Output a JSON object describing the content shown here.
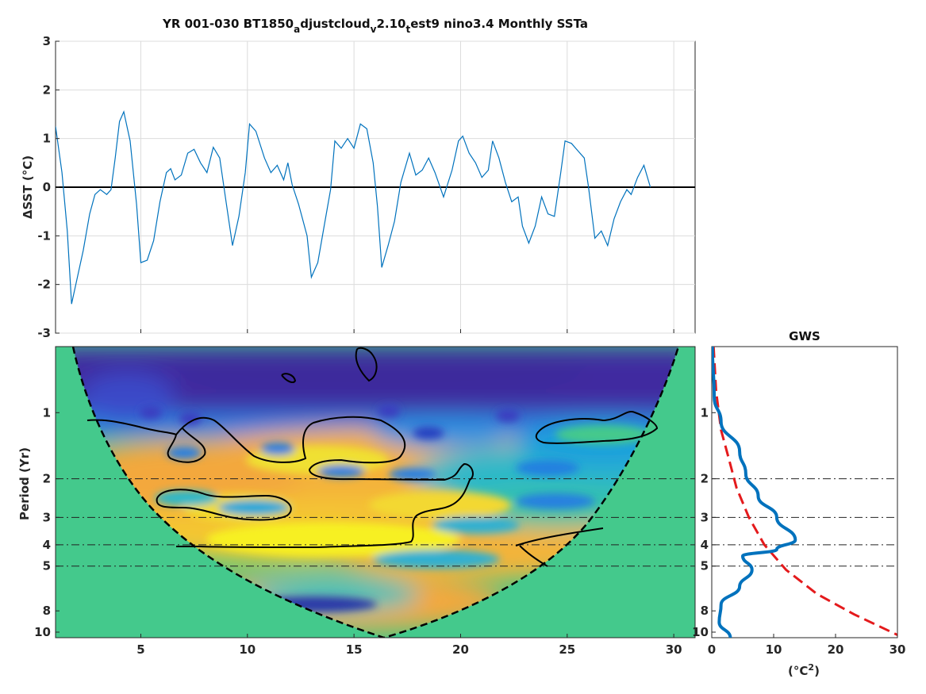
{
  "title_parts": [
    "YR 001-030 BT1850",
    "a",
    "djustcloud",
    "v",
    "2.10",
    "t",
    "est9 nino3.4 Monthly SSTa"
  ],
  "colors": {
    "series": "#0072bd",
    "zero_line": "#000000",
    "coi_fill": "#44c98c",
    "gws_line": "#0072bd",
    "significance": "#e41a1c",
    "grid": "#dcdcdc"
  },
  "chart_data": [
    {
      "type": "line",
      "panel": "time series",
      "ylabel": "ΔSST (°C)",
      "ylim": [
        -3,
        3
      ],
      "xlim": [
        1,
        31
      ],
      "yticks": [
        "3",
        "2",
        "1",
        "0",
        "-1",
        "-2",
        "-3"
      ],
      "xticks": [
        "5",
        "10",
        "15",
        "20",
        "25",
        "30"
      ],
      "grid": true,
      "zero_line": true,
      "series": [
        {
          "values": [
            [
              1.0,
              1.25
            ],
            [
              1.3,
              0.3
            ],
            [
              1.55,
              -0.9
            ],
            [
              1.75,
              -2.4
            ],
            [
              2.0,
              -1.9
            ],
            [
              2.3,
              -1.3
            ],
            [
              2.6,
              -0.55
            ],
            [
              2.85,
              -0.15
            ],
            [
              3.1,
              -0.05
            ],
            [
              3.4,
              -0.15
            ],
            [
              3.6,
              -0.05
            ],
            [
              3.8,
              0.6
            ],
            [
              4.0,
              1.35
            ],
            [
              4.2,
              1.55
            ],
            [
              4.5,
              0.95
            ],
            [
              4.8,
              -0.35
            ],
            [
              5.0,
              -1.55
            ],
            [
              5.3,
              -1.5
            ],
            [
              5.6,
              -1.1
            ],
            [
              5.9,
              -0.3
            ],
            [
              6.2,
              0.3
            ],
            [
              6.4,
              0.38
            ],
            [
              6.6,
              0.15
            ],
            [
              6.9,
              0.25
            ],
            [
              7.2,
              0.7
            ],
            [
              7.5,
              0.78
            ],
            [
              7.8,
              0.5
            ],
            [
              8.1,
              0.3
            ],
            [
              8.4,
              0.82
            ],
            [
              8.7,
              0.6
            ],
            [
              9.0,
              -0.3
            ],
            [
              9.3,
              -1.2
            ],
            [
              9.6,
              -0.6
            ],
            [
              9.9,
              0.3
            ],
            [
              10.1,
              1.3
            ],
            [
              10.4,
              1.15
            ],
            [
              10.8,
              0.6
            ],
            [
              11.1,
              0.3
            ],
            [
              11.4,
              0.45
            ],
            [
              11.7,
              0.15
            ],
            [
              11.9,
              0.5
            ],
            [
              12.1,
              0.05
            ],
            [
              12.4,
              -0.35
            ],
            [
              12.8,
              -1.0
            ],
            [
              13.0,
              -1.85
            ],
            [
              13.3,
              -1.55
            ],
            [
              13.6,
              -0.8
            ],
            [
              13.9,
              -0.05
            ],
            [
              14.1,
              0.95
            ],
            [
              14.4,
              0.8
            ],
            [
              14.7,
              1.0
            ],
            [
              15.0,
              0.8
            ],
            [
              15.3,
              1.3
            ],
            [
              15.6,
              1.2
            ],
            [
              15.9,
              0.5
            ],
            [
              16.1,
              -0.4
            ],
            [
              16.3,
              -1.65
            ],
            [
              16.6,
              -1.2
            ],
            [
              16.9,
              -0.7
            ],
            [
              17.2,
              0.1
            ],
            [
              17.6,
              0.7
            ],
            [
              17.9,
              0.25
            ],
            [
              18.2,
              0.35
            ],
            [
              18.5,
              0.6
            ],
            [
              18.8,
              0.3
            ],
            [
              19.0,
              0.05
            ],
            [
              19.2,
              -0.2
            ],
            [
              19.6,
              0.35
            ],
            [
              19.9,
              0.95
            ],
            [
              20.1,
              1.05
            ],
            [
              20.4,
              0.7
            ],
            [
              20.7,
              0.5
            ],
            [
              21.0,
              0.2
            ],
            [
              21.3,
              0.35
            ],
            [
              21.5,
              0.95
            ],
            [
              21.8,
              0.6
            ],
            [
              22.1,
              0.1
            ],
            [
              22.4,
              -0.3
            ],
            [
              22.7,
              -0.2
            ],
            [
              22.9,
              -0.8
            ],
            [
              23.2,
              -1.15
            ],
            [
              23.5,
              -0.8
            ],
            [
              23.8,
              -0.2
            ],
            [
              24.1,
              -0.55
            ],
            [
              24.4,
              -0.6
            ],
            [
              24.7,
              0.3
            ],
            [
              24.9,
              0.95
            ],
            [
              25.2,
              0.9
            ],
            [
              25.5,
              0.75
            ],
            [
              25.8,
              0.6
            ],
            [
              26.0,
              0.0
            ],
            [
              26.3,
              -1.05
            ],
            [
              26.6,
              -0.9
            ],
            [
              26.9,
              -1.2
            ],
            [
              27.2,
              -0.65
            ],
            [
              27.5,
              -0.3
            ],
            [
              27.8,
              -0.05
            ],
            [
              28.0,
              -0.15
            ],
            [
              28.3,
              0.2
            ],
            [
              28.6,
              0.45
            ],
            [
              28.9,
              0.0
            ]
          ]
        }
      ]
    },
    {
      "type": "heatmap",
      "panel": "wavelet power spectrum",
      "ylabel": "Period (Yr)",
      "yscale": "log",
      "ylim": [
        0.5,
        10.6
      ],
      "xlim": [
        1,
        31
      ],
      "yticks": [
        "1",
        "2",
        "3",
        "4",
        "5",
        "8",
        "10"
      ],
      "xticks": [
        "5",
        "10",
        "15",
        "20",
        "25",
        "30"
      ],
      "reference_periods": [
        2,
        3,
        4,
        5
      ],
      "cone_of_influence": true,
      "significance_contours": true
    },
    {
      "type": "line",
      "panel": "global wavelet spectrum",
      "title": "GWS",
      "xlabel": "(°C²)",
      "xlim": [
        0,
        30
      ],
      "xticks": [
        "0",
        "10",
        "20",
        "30"
      ],
      "yticks": [
        "1",
        "2",
        "3",
        "4",
        "5",
        "8",
        "10"
      ],
      "yscale": "log",
      "series": [
        {
          "style": "solid",
          "values": [
            [
              0.1,
              0.5
            ],
            [
              0.4,
              0.85
            ],
            [
              1.5,
              1.1
            ],
            [
              4.5,
              1.5
            ],
            [
              5.5,
              1.9
            ],
            [
              7.5,
              2.4
            ],
            [
              10.5,
              3.0
            ],
            [
              13.5,
              3.8
            ],
            [
              10.5,
              4.2
            ],
            [
              5.0,
              4.5
            ],
            [
              6.5,
              5.2
            ],
            [
              4.5,
              6.2
            ],
            [
              1.5,
              7.5
            ],
            [
              1.2,
              9.0
            ],
            [
              3.0,
              10.6
            ]
          ]
        },
        {
          "style": "dashed",
          "values": [
            [
              0.3,
              0.5
            ],
            [
              0.7,
              0.8
            ],
            [
              1.5,
              1.2
            ],
            [
              2.7,
              1.6
            ],
            [
              4.0,
              2.2
            ],
            [
              6.0,
              3.0
            ],
            [
              8.5,
              4.0
            ],
            [
              12.0,
              5.2
            ],
            [
              17.0,
              6.7
            ],
            [
              23.0,
              8.3
            ],
            [
              30.0,
              10.3
            ]
          ]
        }
      ]
    }
  ]
}
